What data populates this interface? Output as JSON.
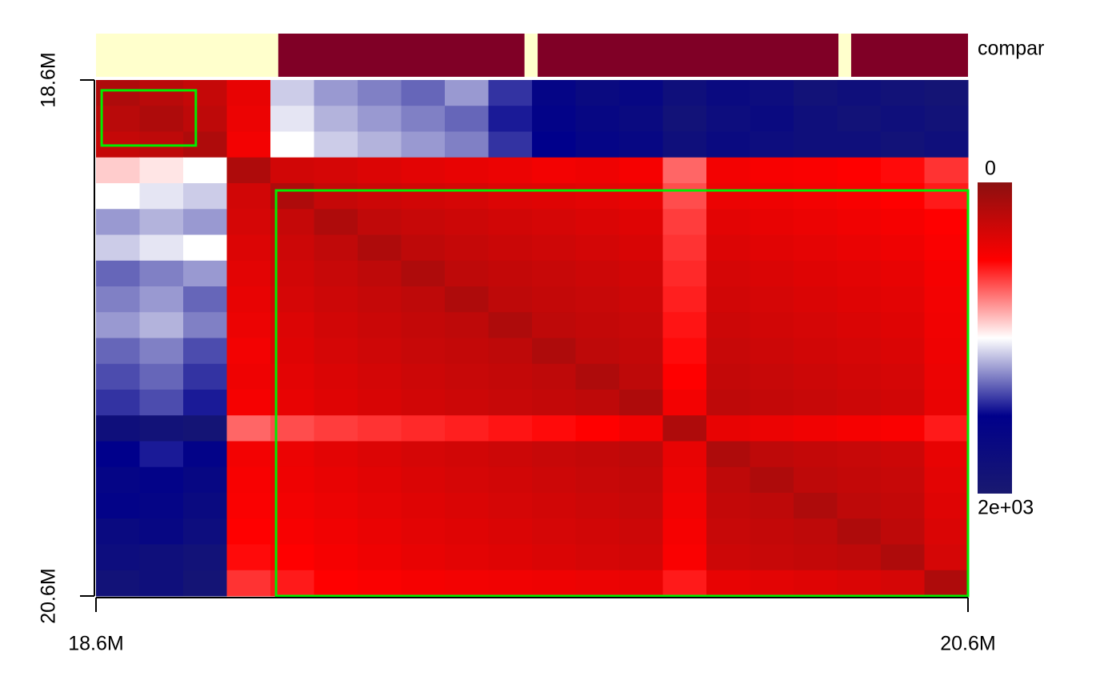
{
  "chart_data": {
    "type": "heatmap",
    "xlim": [
      18.6,
      20.6
    ],
    "ylim": [
      18.6,
      20.6
    ],
    "xticks": [
      {
        "value": 18.6,
        "label": "18.6M"
      },
      {
        "value": 20.6,
        "label": "20.6M"
      }
    ],
    "yticks": [
      {
        "value": 18.6,
        "label": "18.6M"
      },
      {
        "value": 20.6,
        "label": "20.6M"
      }
    ],
    "bins": [
      18.6,
      18.7,
      18.8,
      18.9,
      19.0,
      19.1,
      19.2,
      19.3,
      19.4,
      19.5,
      19.6,
      19.7,
      19.8,
      19.9,
      20.0,
      20.1,
      20.2,
      20.3,
      20.4,
      20.5,
      20.6
    ],
    "z": [
      [
        150,
        200,
        250,
        400,
        1100,
        1200,
        1250,
        1300,
        1200,
        1400,
        1600,
        1700,
        1650,
        1800,
        1700,
        1750,
        1850,
        1800,
        1850,
        1900
      ],
      [
        200,
        150,
        220,
        420,
        1050,
        1150,
        1200,
        1250,
        1300,
        1450,
        1550,
        1650,
        1700,
        1850,
        1750,
        1700,
        1800,
        1850,
        1800,
        1850
      ],
      [
        250,
        220,
        150,
        450,
        1000,
        1100,
        1150,
        1200,
        1250,
        1400,
        1500,
        1600,
        1650,
        1800,
        1700,
        1750,
        1800,
        1800,
        1850,
        1800
      ],
      [
        900,
        950,
        1000,
        150,
        300,
        320,
        350,
        380,
        400,
        420,
        450,
        430,
        460,
        700,
        450,
        470,
        480,
        500,
        520,
        600
      ],
      [
        1000,
        1050,
        1100,
        300,
        150,
        250,
        280,
        300,
        320,
        350,
        360,
        380,
        400,
        650,
        420,
        430,
        450,
        470,
        500,
        550
      ],
      [
        1200,
        1150,
        1200,
        320,
        250,
        150,
        230,
        260,
        280,
        300,
        320,
        340,
        360,
        620,
        380,
        400,
        420,
        440,
        460,
        500
      ],
      [
        1100,
        1050,
        1000,
        350,
        280,
        230,
        150,
        220,
        250,
        270,
        290,
        310,
        330,
        600,
        350,
        370,
        390,
        410,
        430,
        480
      ],
      [
        1300,
        1250,
        1200,
        380,
        300,
        260,
        220,
        150,
        220,
        240,
        260,
        280,
        300,
        580,
        320,
        340,
        360,
        380,
        400,
        460
      ],
      [
        1250,
        1200,
        1300,
        400,
        320,
        280,
        250,
        220,
        150,
        220,
        240,
        260,
        280,
        560,
        300,
        320,
        340,
        360,
        380,
        450
      ],
      [
        1200,
        1150,
        1250,
        420,
        350,
        300,
        270,
        240,
        220,
        150,
        220,
        240,
        260,
        540,
        280,
        300,
        320,
        340,
        360,
        440
      ],
      [
        1300,
        1250,
        1350,
        450,
        360,
        320,
        290,
        260,
        240,
        220,
        150,
        220,
        240,
        520,
        260,
        280,
        300,
        320,
        340,
        430
      ],
      [
        1350,
        1300,
        1400,
        430,
        380,
        340,
        310,
        280,
        260,
        240,
        220,
        150,
        220,
        500,
        240,
        260,
        280,
        300,
        320,
        420
      ],
      [
        1400,
        1350,
        1450,
        460,
        400,
        360,
        330,
        300,
        280,
        260,
        240,
        220,
        150,
        450,
        220,
        240,
        260,
        280,
        300,
        410
      ],
      [
        1800,
        1850,
        1900,
        700,
        650,
        620,
        600,
        580,
        560,
        540,
        520,
        500,
        450,
        150,
        400,
        420,
        440,
        460,
        480,
        550
      ],
      [
        1500,
        1450,
        1550,
        450,
        420,
        380,
        350,
        320,
        300,
        280,
        260,
        240,
        220,
        400,
        150,
        220,
        240,
        260,
        280,
        400
      ],
      [
        1600,
        1550,
        1650,
        470,
        430,
        400,
        370,
        340,
        320,
        300,
        280,
        260,
        240,
        420,
        220,
        150,
        220,
        240,
        260,
        380
      ],
      [
        1550,
        1600,
        1700,
        480,
        450,
        420,
        390,
        360,
        340,
        320,
        300,
        280,
        260,
        440,
        240,
        220,
        150,
        220,
        240,
        360
      ],
      [
        1700,
        1650,
        1750,
        500,
        470,
        440,
        410,
        380,
        360,
        340,
        320,
        300,
        280,
        460,
        260,
        240,
        220,
        150,
        220,
        340
      ],
      [
        1750,
        1800,
        1850,
        520,
        500,
        460,
        430,
        400,
        380,
        360,
        340,
        320,
        300,
        480,
        280,
        260,
        240,
        220,
        150,
        320
      ],
      [
        1850,
        1800,
        1900,
        600,
        550,
        500,
        480,
        460,
        450,
        440,
        430,
        420,
        410,
        550,
        400,
        380,
        360,
        340,
        320,
        150
      ]
    ],
    "clim": [
      0,
      2000
    ],
    "colorbar_ticks": [
      0,
      {
        "value": 2000,
        "label": "2e+03"
      }
    ],
    "palette": [
      "#8b1010",
      "#ff0000",
      "#ffffff",
      "#00008b",
      "#191970"
    ],
    "track": {
      "label": "compar",
      "segments": [
        {
          "start": 18.6,
          "end": 19.018,
          "color": "#ffffcc"
        },
        {
          "start": 19.018,
          "end": 19.583,
          "color": "#800026"
        },
        {
          "start": 19.583,
          "end": 19.613,
          "color": "#ffffcc"
        },
        {
          "start": 19.613,
          "end": 20.303,
          "color": "#800026"
        },
        {
          "start": 20.303,
          "end": 20.332,
          "color": "#ffffcc"
        },
        {
          "start": 20.332,
          "end": 20.6,
          "color": "#800026"
        }
      ]
    },
    "domains": {
      "color": "#00ee00",
      "boxes": [
        {
          "x": [
            18.613,
            18.829
          ],
          "y": [
            18.64,
            18.854
          ]
        },
        {
          "x": [
            19.013,
            20.6
          ],
          "y": [
            19.028,
            20.6
          ]
        }
      ]
    }
  }
}
